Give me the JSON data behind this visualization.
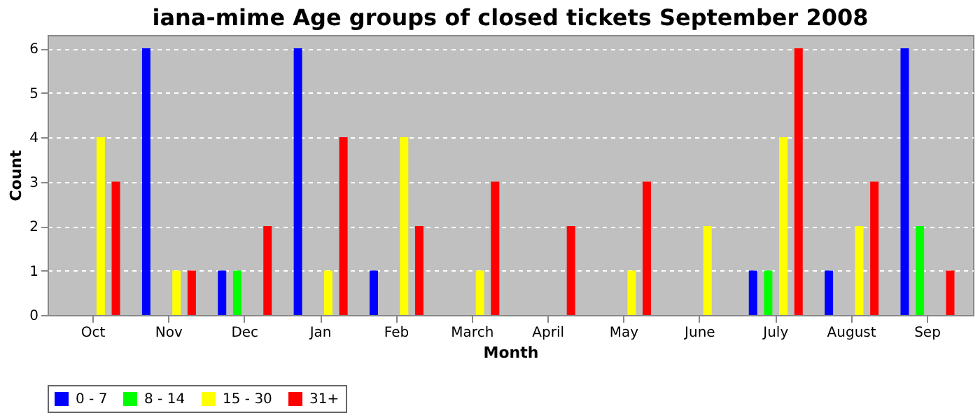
{
  "chart_data": {
    "type": "bar",
    "title": "iana-mime Age groups of closed tickets September 2008",
    "xlabel": "Month",
    "ylabel": "Count",
    "categories": [
      "Oct",
      "Nov",
      "Dec",
      "Jan",
      "Feb",
      "March",
      "April",
      "May",
      "June",
      "July",
      "August",
      "Sep"
    ],
    "series": [
      {
        "name": "0 - 7",
        "color": "#0000ff",
        "values": [
          0,
          6,
          1,
          6,
          1,
          0,
          0,
          0,
          0,
          1,
          1,
          6
        ]
      },
      {
        "name": "8 - 14",
        "color": "#00ff00",
        "values": [
          0,
          0,
          1,
          0,
          0,
          0,
          0,
          0,
          0,
          1,
          0,
          2
        ]
      },
      {
        "name": "15 - 30",
        "color": "#ffff00",
        "values": [
          4,
          1,
          0,
          1,
          4,
          1,
          0,
          1,
          2,
          4,
          2,
          0
        ]
      },
      {
        "name": "31+",
        "color": "#ff0000",
        "values": [
          3,
          1,
          2,
          4,
          2,
          3,
          2,
          3,
          0,
          6,
          3,
          1
        ]
      }
    ],
    "ylim": [
      0,
      6.3
    ],
    "yticks": [
      0,
      1,
      2,
      3,
      4,
      5,
      6
    ],
    "grid": "y",
    "legend": "bottom"
  }
}
